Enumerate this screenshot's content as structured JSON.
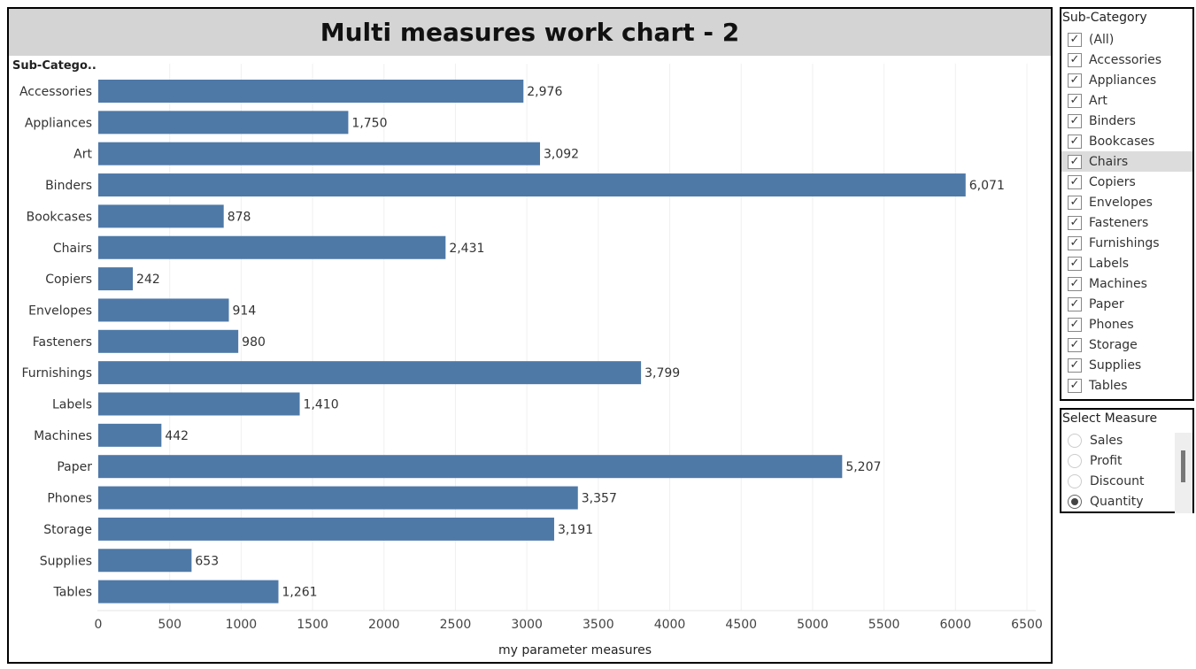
{
  "chart_data": {
    "type": "bar",
    "orientation": "horizontal",
    "title": "Multi measures work chart - 2",
    "row_header": "Sub-Catego..",
    "xlabel": "my parameter measures",
    "ylabel": "",
    "xlim": [
      0,
      6500
    ],
    "xticks": [
      0,
      500,
      1000,
      1500,
      2000,
      2500,
      3000,
      3500,
      4000,
      4500,
      5000,
      5500,
      6000,
      6500
    ],
    "grid": "vertical",
    "bar_color": "#4e79a7",
    "categories": [
      "Accessories",
      "Appliances",
      "Art",
      "Binders",
      "Bookcases",
      "Chairs",
      "Copiers",
      "Envelopes",
      "Fasteners",
      "Furnishings",
      "Labels",
      "Machines",
      "Paper",
      "Phones",
      "Storage",
      "Supplies",
      "Tables"
    ],
    "values": [
      2976,
      1750,
      3092,
      6071,
      878,
      2431,
      242,
      914,
      980,
      3799,
      1410,
      442,
      5207,
      3357,
      3191,
      653,
      1261
    ],
    "value_labels": [
      "2,976",
      "1,750",
      "3,092",
      "6,071",
      "878",
      "2,431",
      "242",
      "914",
      "980",
      "3,799",
      "1,410",
      "442",
      "5,207",
      "3,357",
      "3,191",
      "653",
      "1,261"
    ]
  },
  "filter": {
    "title": "Sub-Category",
    "check_mark": "✓",
    "hovered_item": "Chairs",
    "items": [
      "(All)",
      "Accessories",
      "Appliances",
      "Art",
      "Binders",
      "Bookcases",
      "Chairs",
      "Copiers",
      "Envelopes",
      "Fasteners",
      "Furnishings",
      "Labels",
      "Machines",
      "Paper",
      "Phones",
      "Storage",
      "Supplies",
      "Tables"
    ]
  },
  "measure_selector": {
    "title": "Select Measure",
    "options": [
      "Sales",
      "Profit",
      "Discount",
      "Quantity"
    ],
    "selected": "Quantity"
  }
}
